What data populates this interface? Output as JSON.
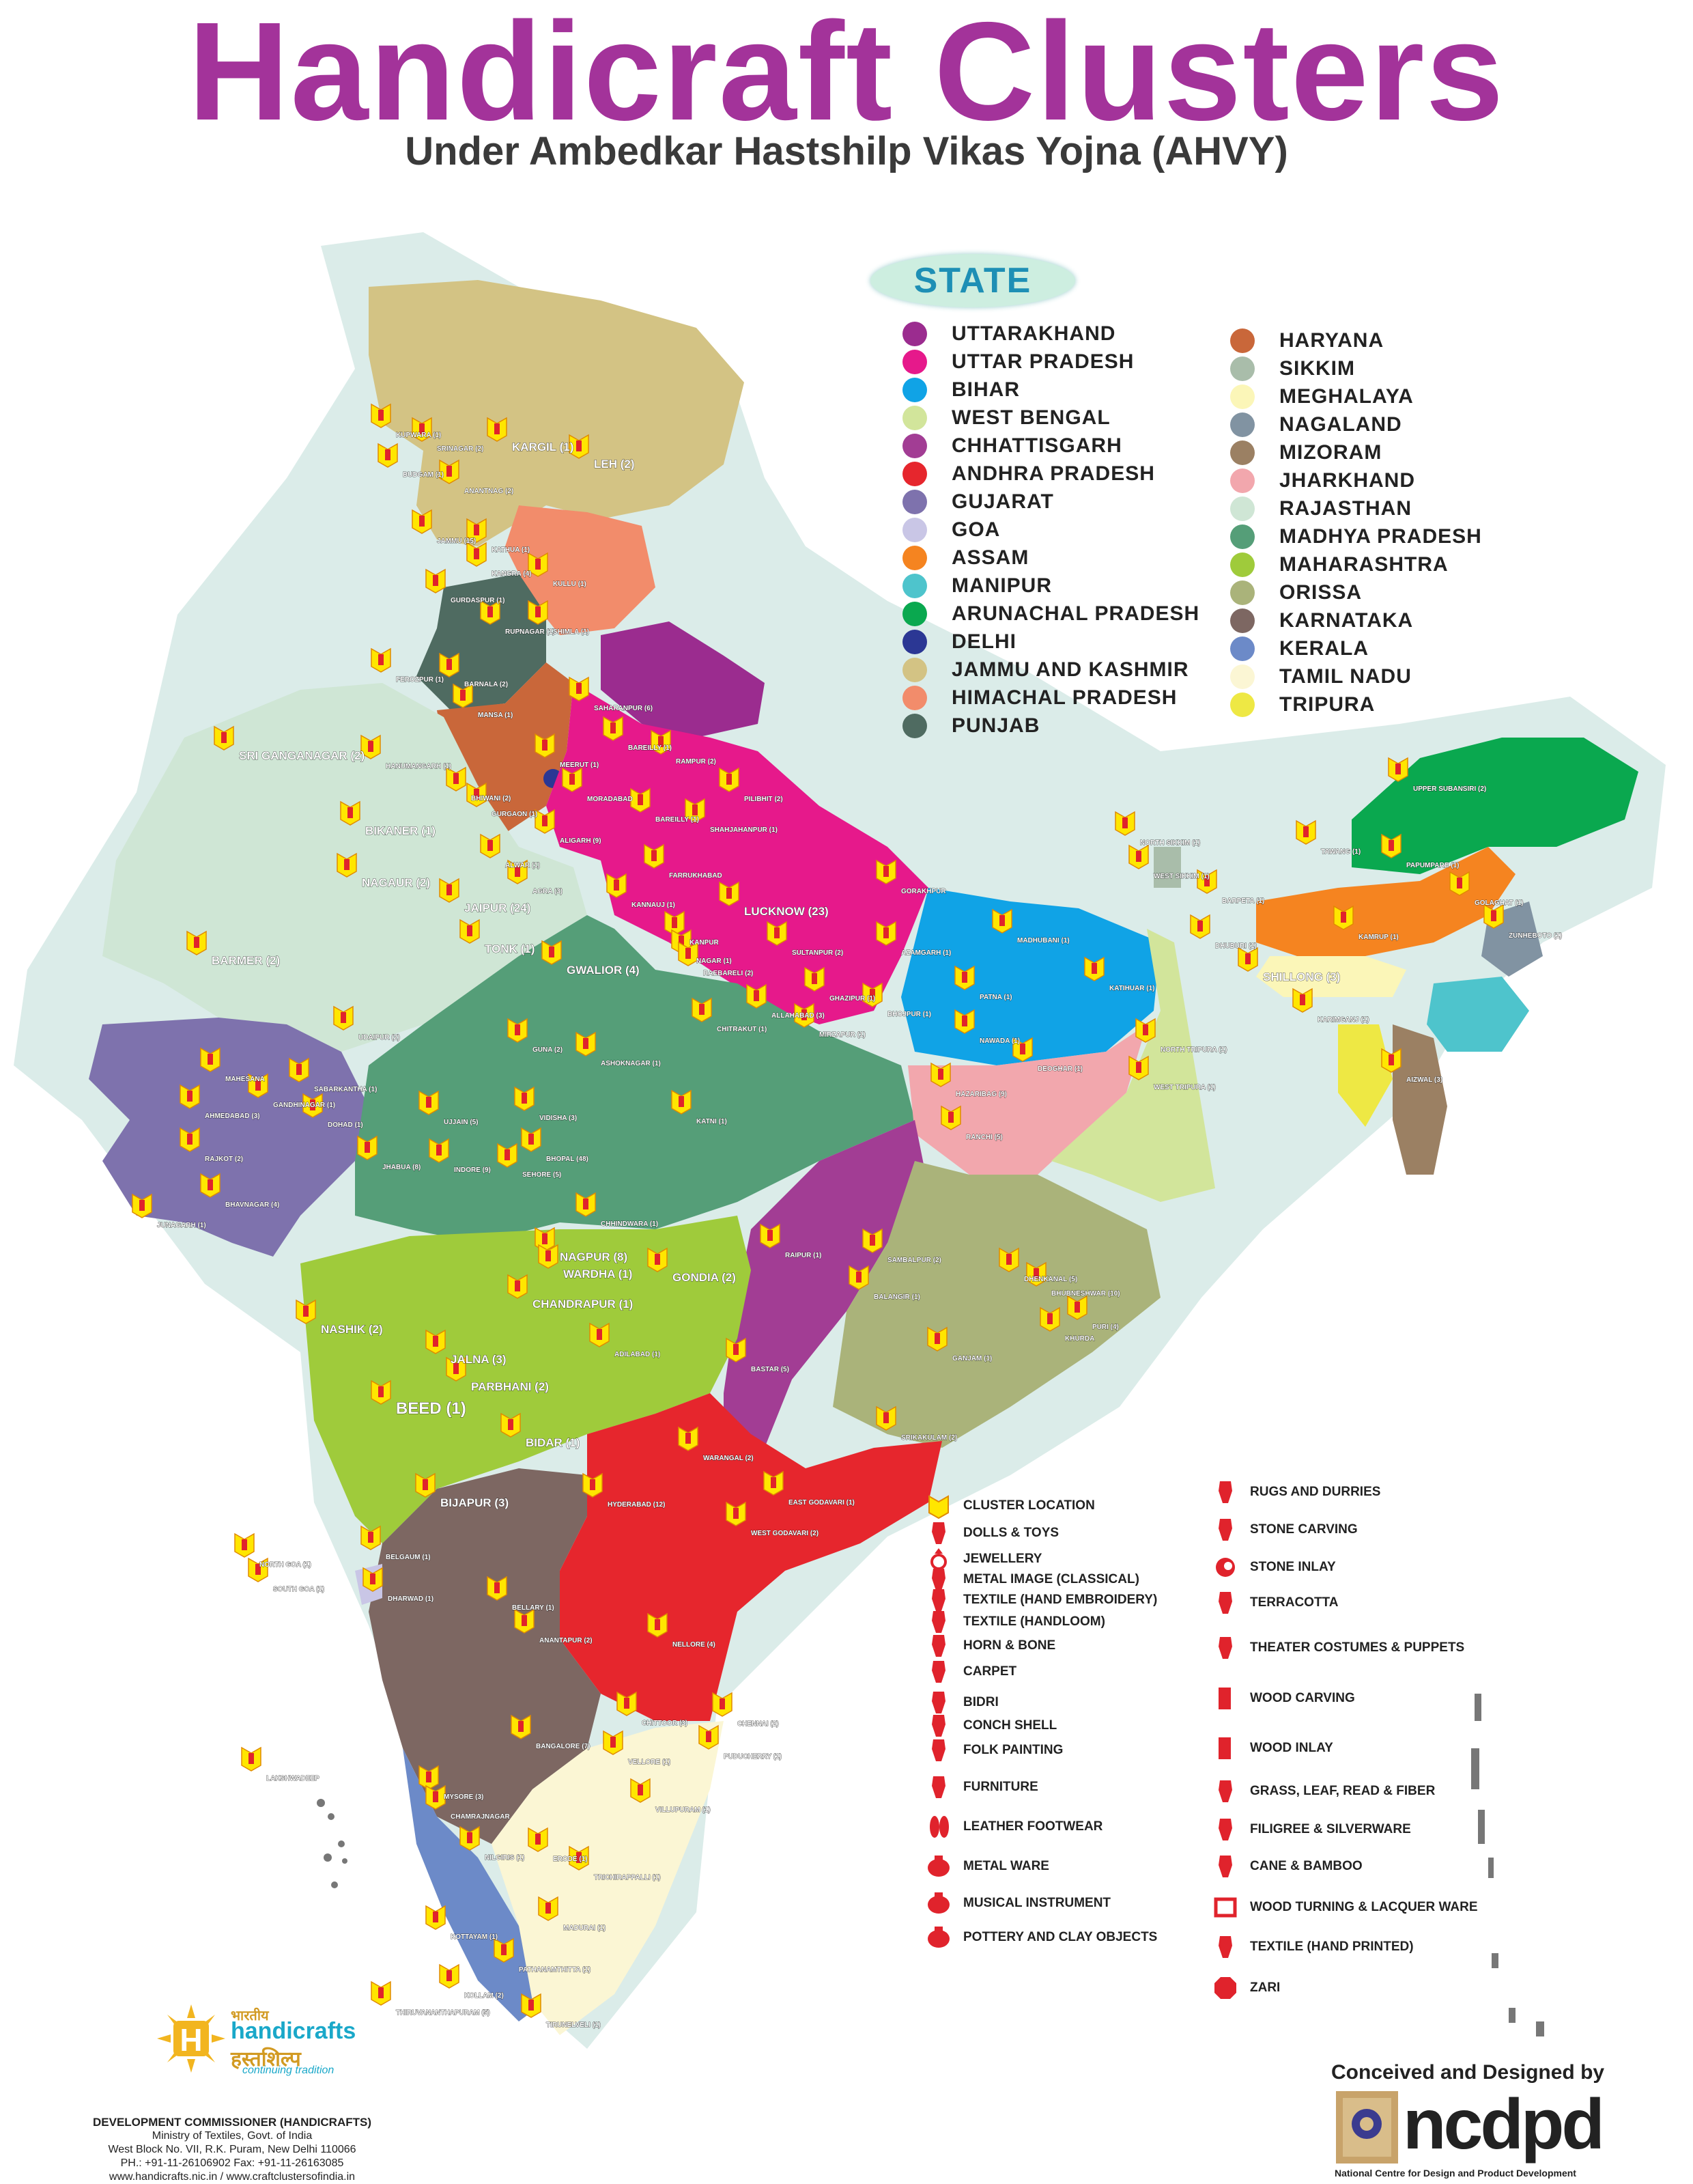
{
  "header": {
    "title": "Handicraft Clusters",
    "subtitle": "Under Ambedkar Hastshilp Vikas Yojna (AHVY)"
  },
  "state_legend": {
    "title": "STATE",
    "col1": [
      {
        "name": "UTTARAKHAND",
        "color": "#9b2c8f"
      },
      {
        "name": "UTTAR PRADESH",
        "color": "#e6198b"
      },
      {
        "name": "BIHAR",
        "color": "#10a3e6"
      },
      {
        "name": "WEST BENGAL",
        "color": "#d2e59b"
      },
      {
        "name": "CHHATTISGARH",
        "color": "#a23d94"
      },
      {
        "name": "ANDHRA PRADESH",
        "color": "#e6262d"
      },
      {
        "name": "GUJARAT",
        "color": "#7e72ad"
      },
      {
        "name": "GOA",
        "color": "#c9c6e6"
      },
      {
        "name": "ASSAM",
        "color": "#f58420"
      },
      {
        "name": "MANIPUR",
        "color": "#4ec4cc"
      },
      {
        "name": "ARUNACHAL PRADESH",
        "color": "#0aa84f"
      },
      {
        "name": "DELHI",
        "color": "#2b3794"
      },
      {
        "name": "JAMMU AND KASHMIR",
        "color": "#d3c384"
      },
      {
        "name": "HIMACHAL PRADESH",
        "color": "#f28c6b"
      },
      {
        "name": "PUNJAB",
        "color": "#4f6b61"
      }
    ],
    "col2": [
      {
        "name": "HARYANA",
        "color": "#c9673a"
      },
      {
        "name": "SIKKIM",
        "color": "#a9bdaa"
      },
      {
        "name": "MEGHALAYA",
        "color": "#fbf6b8"
      },
      {
        "name": "NAGALAND",
        "color": "#8193a2"
      },
      {
        "name": "MIZORAM",
        "color": "#9b8063"
      },
      {
        "name": "JHARKHAND",
        "color": "#f2a7ad"
      },
      {
        "name": "RAJASTHAN",
        "color": "#cfe6d5"
      },
      {
        "name": "MADHYA PRADESH",
        "color": "#559e78"
      },
      {
        "name": "MAHARASHTRA",
        "color": "#9fcb3b"
      },
      {
        "name": "ORISSA",
        "color": "#aab37a"
      },
      {
        "name": "KARNATAKA",
        "color": "#7d6762"
      },
      {
        "name": "KERALA",
        "color": "#6c8ac8"
      },
      {
        "name": "TAMIL NADU",
        "color": "#fbf6d4"
      },
      {
        "name": "TRIPURA",
        "color": "#eee844"
      }
    ]
  },
  "map": {
    "colors": {
      "sea_land": "#d8ebe7",
      "marker_fill": "#ffe600",
      "marker_stroke": "#e08a00",
      "icon": "#e0232c"
    },
    "place_labels": [
      {
        "t": "KUPWARA (1)"
      },
      {
        "t": "SRINAGAR (2)"
      },
      {
        "t": "KARGIL (1)"
      },
      {
        "t": "LEH (2)"
      },
      {
        "t": "BUDGAM (1)"
      },
      {
        "t": "ANANTNAG (2)"
      },
      {
        "t": "JAMMU (15)"
      },
      {
        "t": "KATHUA (1)"
      },
      {
        "t": "KANGRA (4)"
      },
      {
        "t": "KULLU (1)"
      },
      {
        "t": "GURDASPUR (1)"
      },
      {
        "t": "RUPNAGAR (1)"
      },
      {
        "t": "SHIMLA (1)"
      },
      {
        "t": "FEROZPUR (1)"
      },
      {
        "t": "BARNALA (2)"
      },
      {
        "t": "MANSA (1)"
      },
      {
        "t": "SAHARANPUR (6)"
      },
      {
        "t": "SRI GANGANAGAR (2)"
      },
      {
        "t": "HANUMANGARH (1)"
      },
      {
        "t": "BAREILLY (1)"
      },
      {
        "t": "RAMPUR (2)"
      },
      {
        "t": "MEERUT (1)"
      },
      {
        "t": "MORADABAD"
      },
      {
        "t": "PILIBHIT (2)"
      },
      {
        "t": "BHIWANI (2)"
      },
      {
        "t": "GURGAON (1)"
      },
      {
        "t": "BAREILLY (1)"
      },
      {
        "t": "SHAHJAHANPUR (1)"
      },
      {
        "t": "BIKANER (1)"
      },
      {
        "t": "ALIGARH (9)"
      },
      {
        "t": "NAGAUR (2)"
      },
      {
        "t": "ALWAR (1)"
      },
      {
        "t": "AGRA (3)"
      },
      {
        "t": "FARRUKHABAD"
      },
      {
        "t": "JAIPUR (24)"
      },
      {
        "t": "KANNAUJ (1)"
      },
      {
        "t": "LUCKNOW (23)"
      },
      {
        "t": "GORAKHPUR"
      },
      {
        "t": "TONK (1)"
      },
      {
        "t": "BARMER (2)"
      },
      {
        "t": "KANPUR"
      },
      {
        "t": "NAGAR (1)"
      },
      {
        "t": "SULTANPUR (2)"
      },
      {
        "t": "AZAMGARH (1)"
      },
      {
        "t": "MADHUBANI (1)"
      },
      {
        "t": "GWALIOR (4)"
      },
      {
        "t": "RAEBARELI (2)"
      },
      {
        "t": "GHAZIPUR (1)"
      },
      {
        "t": "PATNA (1)"
      },
      {
        "t": "KATIHUAR (1)"
      },
      {
        "t": "ALLAHABAD (3)"
      },
      {
        "t": "BHOJPUR (1)"
      },
      {
        "t": "CHITRAKUT (1)"
      },
      {
        "t": "MIRZAPUR (1)"
      },
      {
        "t": "UDAIPUR (2)"
      },
      {
        "t": "NAWADA (1)"
      },
      {
        "t": "GUNA (2)"
      },
      {
        "t": "ASHOKNAGAR (1)"
      },
      {
        "t": "DEOGHAR (1)"
      },
      {
        "t": "MAHESANA"
      },
      {
        "t": "SABARKANTHA (1)"
      },
      {
        "t": "GANDHINAGAR (1)"
      },
      {
        "t": "AHMEDABAD (3)"
      },
      {
        "t": "DOHAD (1)"
      },
      {
        "t": "UJJAIN (5)"
      },
      {
        "t": "VIDISHA (3)"
      },
      {
        "t": "KATNI (1)"
      },
      {
        "t": "HAZARIBAG (9)"
      },
      {
        "t": "RAJKOT (2)"
      },
      {
        "t": "JHABUA (8)"
      },
      {
        "t": "INDORE (9)"
      },
      {
        "t": "BHOPAL (48)"
      },
      {
        "t": "SEHORE (5)"
      },
      {
        "t": "RANCHI (5)"
      },
      {
        "t": "BHAVNAGAR (4)"
      },
      {
        "t": "JUNAGARH (1)"
      },
      {
        "t": "CHHINDWARA (1)"
      },
      {
        "t": "NAGPUR (8)"
      },
      {
        "t": "WARDHA (1)"
      },
      {
        "t": "GONDIA (2)"
      },
      {
        "t": "RAIPUR (1)"
      },
      {
        "t": "SAMBALPUR (2)"
      },
      {
        "t": "DHENKANAL (5)"
      },
      {
        "t": "CHANDRAPUR (1)"
      },
      {
        "t": "BHUBNESHWAR (10)"
      },
      {
        "t": "BALANGIR (1)"
      },
      {
        "t": "NASHIK (2)"
      },
      {
        "t": "KHURDA"
      },
      {
        "t": "PURI (4)"
      },
      {
        "t": "JALNA (3)"
      },
      {
        "t": "ADILABAD (1)"
      },
      {
        "t": "GANJAM (1)"
      },
      {
        "t": "PARBHANI (2)"
      },
      {
        "t": "BASTAR (5)"
      },
      {
        "t": "BEED (1)"
      },
      {
        "t": "SRIKAKULAM (2)"
      },
      {
        "t": "BIDAR (1)"
      },
      {
        "t": "WARANGAL (2)"
      },
      {
        "t": "BIJAPUR (3)"
      },
      {
        "t": "HYDERABAD (12)"
      },
      {
        "t": "EAST GODAVARI (1)"
      },
      {
        "t": "WEST GODAVARI (2)"
      },
      {
        "t": "NORTH GOA (1)"
      },
      {
        "t": "BELGAUM (1)"
      },
      {
        "t": "SOUTH GOA (1)"
      },
      {
        "t": "DHARWAD (1)"
      },
      {
        "t": "BELLARY (1)"
      },
      {
        "t": "ANANTAPUR (2)"
      },
      {
        "t": "NELLORE (4)"
      },
      {
        "t": "CHITTOOR (3)"
      },
      {
        "t": "CHENNAI (2)"
      },
      {
        "t": "BANGALORE (7)"
      },
      {
        "t": "VELLORE (1)"
      },
      {
        "t": "PUDUCHERRY (1)"
      },
      {
        "t": "LAKSHWADEEP"
      },
      {
        "t": "MYSORE (3)"
      },
      {
        "t": "CHAMRAJNAGAR"
      },
      {
        "t": "VILLUPURAM (1)"
      },
      {
        "t": "NILGIRIS (1)"
      },
      {
        "t": "ERODE (1)"
      },
      {
        "t": "TRICHIRAPPALLI (1)"
      },
      {
        "t": "KOTTAYAM (1)"
      },
      {
        "t": "MADURAI (1)"
      },
      {
        "t": "PATHANAMTHITTA (1)"
      },
      {
        "t": "KOLLAM (2)"
      },
      {
        "t": "THIRUVANANTHAPURAM (5)"
      },
      {
        "t": "TIRUNELVELI (1)"
      },
      {
        "t": "UPPER SUBANSIRI (2)"
      },
      {
        "t": "TAWANG (1)"
      },
      {
        "t": "PAPUMPARE (1)"
      },
      {
        "t": "BARPETA (1)"
      },
      {
        "t": "GOLAGHAT (1)"
      },
      {
        "t": "DHUBURI (1)"
      },
      {
        "t": "KAMRUP (1)"
      },
      {
        "t": "ZUNHEBOTO (1)"
      },
      {
        "t": "SHILLONG (3)"
      },
      {
        "t": "KARIMGANJ (1)"
      },
      {
        "t": "NORTH TRIPURA (1)"
      },
      {
        "t": "WEST TRIPURA (1)"
      },
      {
        "t": "AIZWAL (3)"
      },
      {
        "t": "NORTH SIKKIM (1)"
      },
      {
        "t": "WEST SIKKIM (1)"
      }
    ]
  },
  "craft_legend": {
    "col1": [
      "CLUSTER LOCATION",
      "DOLLS & TOYS",
      "JEWELLERY",
      "METAL IMAGE (CLASSICAL)",
      "TEXTILE (HAND EMBROIDERY)",
      "TEXTILE (HANDLOOM)",
      "HORN & BONE",
      "CARPET",
      "BIDRI",
      "CONCH SHELL",
      "FOLK PAINTING",
      "FURNITURE",
      "LEATHER FOOTWEAR",
      "METAL WARE",
      "MUSICAL INSTRUMENT",
      "POTTERY AND CLAY OBJECTS"
    ],
    "col2": [
      "RUGS AND DURRIES",
      "STONE CARVING",
      "STONE INLAY",
      "TERRACOTTA",
      "THEATER COSTUMES & PUPPETS",
      "WOOD CARVING",
      "WOOD INLAY",
      "GRASS, LEAF, READ & FIBER",
      "FILIGREE & SILVERWARE",
      "CANE & BAMBOO",
      "WOOD TURNING & LACQUER WARE",
      "TEXTILE (HAND PRINTED)",
      "ZARI"
    ]
  },
  "footer": {
    "logo_hindi_top": "भारतीय",
    "logo_indian": "indian",
    "logo_handicrafts": "handicrafts",
    "logo_hindi": "हस्तशिल्प",
    "logo_tagline": "continuing tradition",
    "office_head": "DEVELOPMENT COMMISSIONER (HANDICRAFTS)",
    "office_lines": [
      "Ministry of Textiles, Govt. of India",
      "West Block No. VII, R.K. Puram, New Delhi 110066",
      "PH.: +91-11-26106902 Fax: +91-11-26163085",
      "www.handicrafts.nic.in / www.craftclustersofindia.in"
    ],
    "credit": "Conceived and Designed by",
    "ncdpd_letters": "ncdpd",
    "ncdpd_full": "National Centre for Design and Product Development"
  }
}
